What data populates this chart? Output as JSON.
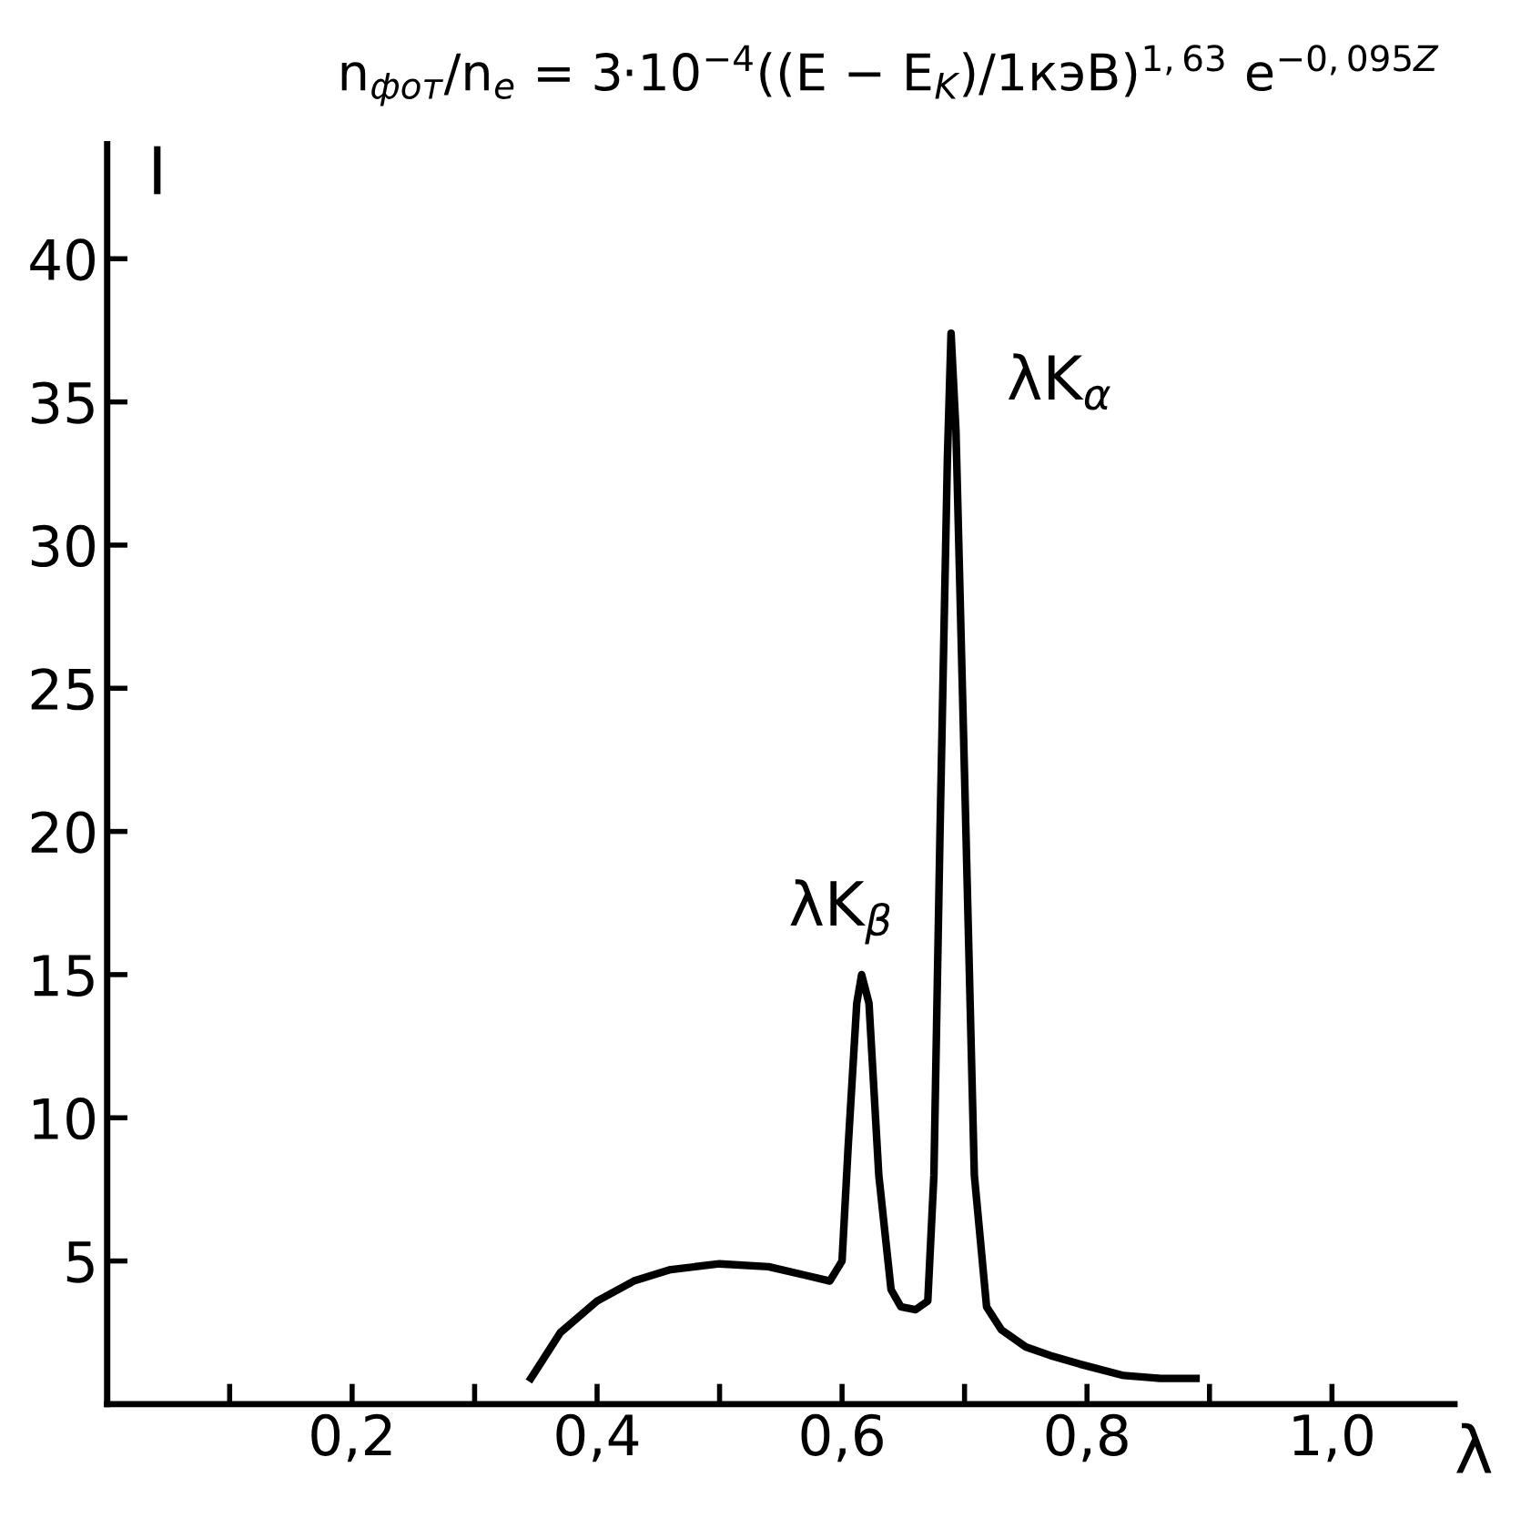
{
  "chart_data": {
    "type": "line",
    "title": "n$_{фот}$/n$_{e}$ = 3·10$^{−4}$((E − E$_{K}$)/1кэВ)$^{1,63}$ e$^{−0,095Z}$",
    "xlabel": "λ",
    "ylabel": "I",
    "series": [
      {
        "color": "#000000",
        "x": [
          0.346,
          0.37,
          0.4,
          0.43,
          0.46,
          0.5,
          0.54,
          0.57,
          0.59,
          0.6,
          0.605,
          0.612,
          0.616,
          0.622,
          0.63,
          0.64,
          0.648,
          0.66,
          0.67,
          0.675,
          0.68,
          0.686,
          0.689,
          0.693,
          0.7,
          0.708,
          0.718,
          0.73,
          0.75,
          0.77,
          0.794,
          0.83,
          0.86,
          0.889
        ],
        "values": [
          0.9,
          2.5,
          3.6,
          4.3,
          4.7,
          4.9,
          4.8,
          4.5,
          4.3,
          5.0,
          9.0,
          14.0,
          15.0,
          14.0,
          8.0,
          4.0,
          3.4,
          3.3,
          3.6,
          8.0,
          20.0,
          33.0,
          37.4,
          34.0,
          22.0,
          8.0,
          3.4,
          2.6,
          2.0,
          1.7,
          1.4,
          1.0,
          0.9,
          0.9
        ]
      }
    ],
    "annotations": [
      {
        "text": "λK$_{β}$",
        "x": 0.616,
        "y": 15.0
      },
      {
        "text": "λK$_{α}$",
        "x": 0.689,
        "y": 37.4
      }
    ],
    "xlim": [
      0,
      1.1
    ],
    "ylim": [
      0,
      44
    ],
    "xticks": [
      {
        "value": 0.1,
        "label": null
      },
      {
        "value": 0.2,
        "label": "0,2"
      },
      {
        "value": 0.3,
        "label": null
      },
      {
        "value": 0.4,
        "label": "0,4"
      },
      {
        "value": 0.5,
        "label": null
      },
      {
        "value": 0.6,
        "label": "0,6"
      },
      {
        "value": 0.7,
        "label": null
      },
      {
        "value": 0.8,
        "label": "0,8"
      },
      {
        "value": 0.9,
        "label": null
      },
      {
        "value": 1.0,
        "label": "1,0"
      }
    ],
    "yticks": [
      5,
      10,
      15,
      20,
      25,
      30,
      35,
      40
    ],
    "grid": false,
    "legend": false,
    "marker": "none",
    "line_style": "solid"
  }
}
